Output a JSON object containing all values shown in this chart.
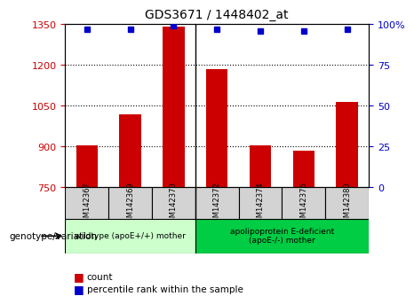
{
  "title": "GDS3671 / 1448402_at",
  "samples": [
    "GSM142367",
    "GSM142369",
    "GSM142370",
    "GSM142372",
    "GSM142374",
    "GSM142376",
    "GSM142380"
  ],
  "counts": [
    905,
    1020,
    1340,
    1185,
    905,
    885,
    1065
  ],
  "percentile_ranks": [
    97,
    97,
    99,
    97,
    96,
    96,
    97
  ],
  "ylim_left": [
    750,
    1350
  ],
  "ylim_right": [
    0,
    100
  ],
  "yticks_left": [
    750,
    900,
    1050,
    1200,
    1350
  ],
  "yticks_right": [
    0,
    25,
    50,
    75,
    100
  ],
  "ytick_labels_right": [
    "0",
    "25",
    "50",
    "75",
    "100%"
  ],
  "bar_color": "#cc0000",
  "dot_color": "#0000cc",
  "group1_count": 3,
  "group2_count": 4,
  "group1_label": "wildtype (apoE+/+) mother",
  "group2_label": "apolipoprotein E-deficient\n(apoE-/-) mother",
  "group1_color": "#ccffcc",
  "group2_color": "#00cc44",
  "xlabel_group": "genotype/variation",
  "legend_count_label": "count",
  "legend_pct_label": "percentile rank within the sample",
  "sample_bg": "#d3d3d3",
  "plot_bg": "#ffffff"
}
